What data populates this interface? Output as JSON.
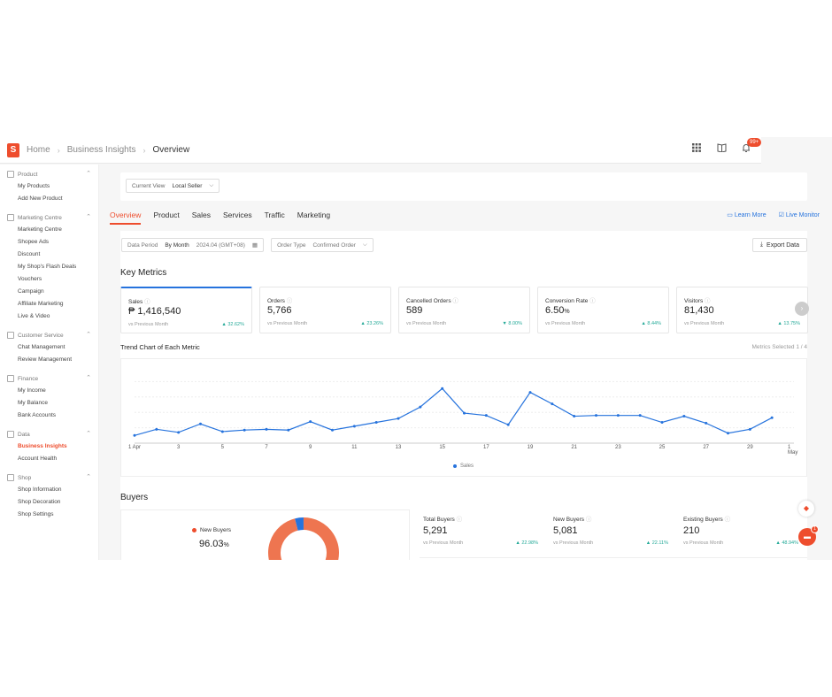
{
  "topbar": {
    "logo_glyph": "S",
    "breadcrumb": [
      "Home",
      "Business Insights",
      "Overview"
    ],
    "notif_badge": "99+"
  },
  "sidebar": {
    "groups": [
      {
        "title": "Product",
        "items": [
          "My Products",
          "Add New Product"
        ]
      },
      {
        "title": "Marketing Centre",
        "items": [
          "Marketing Centre",
          "Shopee Ads",
          "Discount",
          "My Shop's Flash Deals",
          "Vouchers",
          "Campaign",
          "Affiliate Marketing",
          "Live & Video"
        ]
      },
      {
        "title": "Customer Service",
        "items": [
          "Chat Management",
          "Review Management"
        ]
      },
      {
        "title": "Finance",
        "items": [
          "My Income",
          "My Balance",
          "Bank Accounts"
        ]
      },
      {
        "title": "Data",
        "items": [
          "Business Insights",
          "Account Health"
        ]
      },
      {
        "title": "Shop",
        "items": [
          "Shop Information",
          "Shop Decoration",
          "Shop Settings"
        ]
      }
    ]
  },
  "view": {
    "label": "Current View",
    "value": "Local Seller"
  },
  "tabs": [
    "Overview",
    "Product",
    "Sales",
    "Services",
    "Traffic",
    "Marketing"
  ],
  "links": {
    "learn_more": "Learn More",
    "live_monitor": "Live Monitor"
  },
  "filters": {
    "period_label": "Data Period",
    "period_mode": "By Month",
    "period_value": "2024.04 (GMT+08)",
    "order_label": "Order Type",
    "order_value": "Confirmed Order",
    "export": "Export Data"
  },
  "key_metrics": {
    "title": "Key Metrics",
    "items": [
      {
        "name": "Sales",
        "value": "₱ 1,416,540",
        "pct": "",
        "vs": "vs Previous Month",
        "change": "▲ 32.62%"
      },
      {
        "name": "Orders",
        "value": "5,766",
        "pct": "",
        "vs": "vs Previous Month",
        "change": "▲ 23.26%"
      },
      {
        "name": "Cancelled Orders",
        "value": "589",
        "pct": "",
        "vs": "vs Previous Month",
        "change": "▼ 8.00%"
      },
      {
        "name": "Conversion Rate",
        "value": "6.50",
        "pct": "%",
        "vs": "vs Previous Month",
        "change": "▲ 8.44%"
      },
      {
        "name": "Visitors",
        "value": "81,430",
        "pct": "",
        "vs": "vs Previous Month",
        "change": "▲ 13.75%"
      }
    ]
  },
  "trend": {
    "title": "Trend Chart of Each Metric",
    "selected": "Metrics Selected 1 / 4"
  },
  "chart_data": {
    "type": "line",
    "title": "Trend Chart of Each Metric",
    "xlabel": "",
    "ylabel": "",
    "x_ticks": [
      "1 Apr",
      "3",
      "5",
      "7",
      "9",
      "11",
      "13",
      "15",
      "17",
      "19",
      "21",
      "23",
      "25",
      "27",
      "29",
      "1 May"
    ],
    "series": [
      {
        "name": "Sales",
        "color": "#2673dd",
        "x": [
          1,
          2,
          3,
          4,
          5,
          6,
          7,
          8,
          9,
          10,
          11,
          12,
          13,
          14,
          15,
          16,
          17,
          18,
          19,
          20,
          21,
          22,
          23,
          24,
          25,
          26,
          27,
          28,
          29,
          30
        ],
        "values": [
          10,
          18,
          14,
          25,
          15,
          17,
          18,
          17,
          28,
          17,
          22,
          27,
          32,
          47,
          71,
          39,
          36,
          24,
          66,
          51,
          35,
          36,
          36,
          36,
          27,
          35,
          26,
          13,
          18,
          33
        ]
      }
    ],
    "ylim": [
      0,
      100
    ],
    "grid": true,
    "legend": "bottom"
  },
  "buyers": {
    "title": "Buyers",
    "legend": "New Buyers",
    "percent": "96.03",
    "percent_unit": "%",
    "new_share": 96.03,
    "metrics": [
      {
        "name": "Total Buyers",
        "value": "5,291",
        "vs": "vs Previous Month",
        "change": "▲ 22.98%"
      },
      {
        "name": "New Buyers",
        "value": "5,081",
        "vs": "vs Previous Month",
        "change": "▲ 22.11%"
      },
      {
        "name": "Existing Buyers",
        "value": "210",
        "vs": "vs Previous Month",
        "change": "▲ 48.94%"
      }
    ]
  },
  "floating": {
    "chat_badge": "1"
  }
}
